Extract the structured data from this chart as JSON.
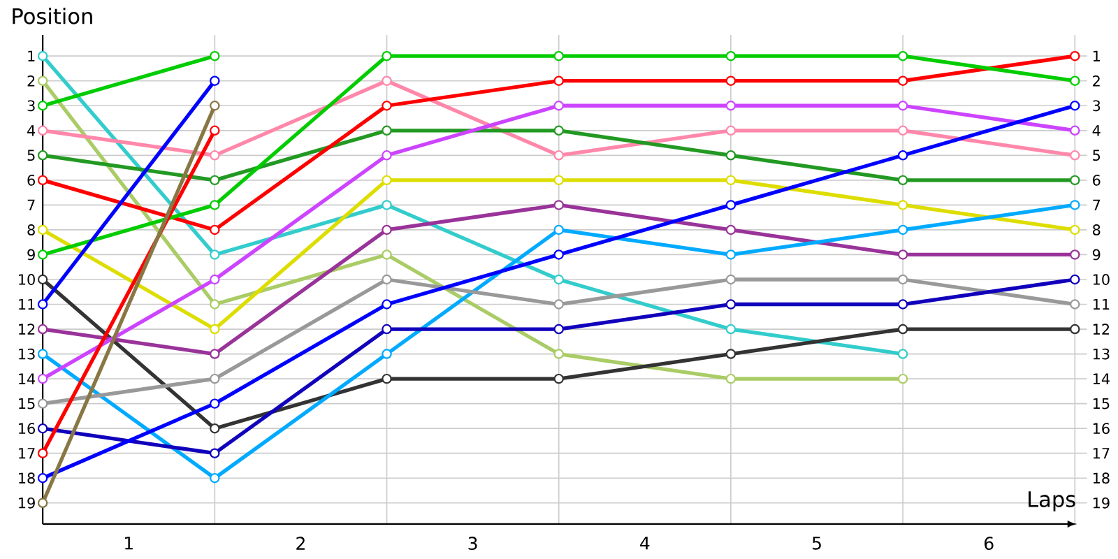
{
  "chart_data": {
    "type": "line",
    "xlabel": "Laps",
    "ylabel": "Position",
    "x": [
      0.5,
      1.5,
      2.5,
      3.5,
      4.5,
      5.5,
      6.5
    ],
    "xlim": [
      0.5,
      6.57
    ],
    "xticks": [
      {
        "value": 1.5,
        "label": null
      },
      {
        "value": 2.5,
        "label": null
      },
      {
        "value": 3.5,
        "label": null
      },
      {
        "value": 4.5,
        "label": null
      },
      {
        "value": 5.5,
        "label": null
      },
      {
        "value": 6.5,
        "label": null
      },
      1,
      2,
      3,
      4,
      5,
      6
    ],
    "ylim": [
      19.85,
      0.15
    ],
    "yticks": [
      1,
      2,
      3,
      4,
      5,
      6,
      7,
      8,
      9,
      10,
      11,
      12,
      13,
      14,
      15,
      16,
      17,
      18,
      19
    ],
    "y2lim": [
      19.85,
      0.15
    ],
    "y2ticks": [
      1,
      2,
      3,
      4,
      5,
      6,
      7,
      8,
      9,
      10,
      11,
      12,
      13,
      14,
      15,
      16,
      17,
      18,
      19
    ],
    "grid": true,
    "marker": "circle",
    "line_style": "solid",
    "series": [
      {
        "color": "#33cccc",
        "values": [
          1,
          9,
          7,
          10,
          12,
          13,
          null
        ]
      },
      {
        "color": "#aacc66",
        "values": [
          2,
          11,
          9,
          13,
          14,
          14,
          null
        ]
      },
      {
        "color": "#00cc00",
        "values": [
          3,
          1,
          null,
          null,
          null,
          null,
          null
        ]
      },
      {
        "color": "#ff88aa",
        "values": [
          4,
          5,
          2,
          5,
          4,
          4,
          5
        ]
      },
      {
        "color": "#229922",
        "values": [
          5,
          6,
          4,
          4,
          5,
          6,
          6
        ]
      },
      {
        "color": "#ff0000",
        "values": [
          6,
          8,
          3,
          2,
          2,
          2,
          1
        ]
      },
      {
        "color": "#dddd00",
        "values": [
          8,
          12,
          6,
          6,
          6,
          7,
          8
        ]
      },
      {
        "color": "#00cc00",
        "values": [
          9,
          7,
          1,
          1,
          1,
          1,
          2
        ]
      },
      {
        "color": "#333333",
        "values": [
          10,
          16,
          14,
          14,
          13,
          12,
          12
        ]
      },
      {
        "color": "#0000ff",
        "values": [
          11,
          2,
          null,
          null,
          null,
          null,
          null
        ]
      },
      {
        "color": "#993399",
        "values": [
          12,
          13,
          8,
          7,
          8,
          9,
          9
        ]
      },
      {
        "color": "#00aaff",
        "values": [
          13,
          18,
          13,
          8,
          9,
          8,
          7
        ]
      },
      {
        "color": "#cc44ff",
        "values": [
          14,
          10,
          5,
          3,
          3,
          3,
          4
        ]
      },
      {
        "color": "#999999",
        "values": [
          15,
          14,
          10,
          11,
          10,
          10,
          11
        ]
      },
      {
        "color": "#1100bb",
        "values": [
          16,
          17,
          12,
          12,
          11,
          11,
          10
        ]
      },
      {
        "color": "#ff0000",
        "values": [
          17,
          4,
          null,
          null,
          null,
          null,
          null
        ]
      },
      {
        "color": "#0000ff",
        "values": [
          18,
          15,
          11,
          9,
          7,
          5,
          3
        ]
      },
      {
        "color": "#887744",
        "values": [
          19,
          3,
          null,
          null,
          null,
          null,
          null
        ]
      }
    ]
  }
}
